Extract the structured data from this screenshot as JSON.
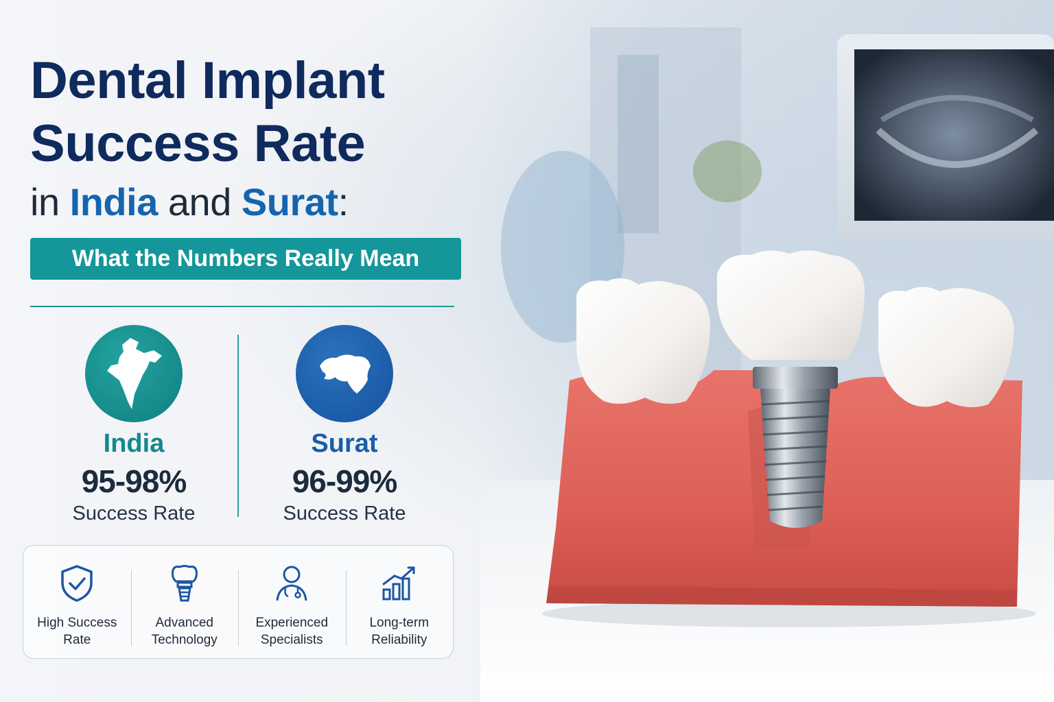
{
  "title": {
    "line1": "Dental Implant",
    "line2": "Success Rate",
    "line3_prefix": "in ",
    "line3_india": "India",
    "line3_mid": " and ",
    "line3_surat": "Surat",
    "line3_suffix": ":"
  },
  "subtitle": "What the Numbers Really Mean",
  "stats": [
    {
      "name": "India",
      "value": "95-98%",
      "label": "Success Rate",
      "color": "#138a8a",
      "icon": "india-map-icon"
    },
    {
      "name": "Surat",
      "value": "96-99%",
      "label": "Success Rate",
      "color": "#1a5da8",
      "icon": "gujarat-map-icon"
    }
  ],
  "features": [
    {
      "line1": "High Success",
      "line2": "Rate",
      "icon": "shield-check-icon"
    },
    {
      "line1": "Advanced",
      "line2": "Technology",
      "icon": "implant-tooth-icon"
    },
    {
      "line1": "Experienced",
      "line2": "Specialists",
      "icon": "doctor-icon"
    },
    {
      "line1": "Long-term",
      "line2": "Reliability",
      "icon": "growth-chart-icon"
    }
  ],
  "colors": {
    "navy": "#0f2a5c",
    "accent_blue": "#1565ad",
    "teal": "#14969a",
    "gum": "#e0675e"
  }
}
